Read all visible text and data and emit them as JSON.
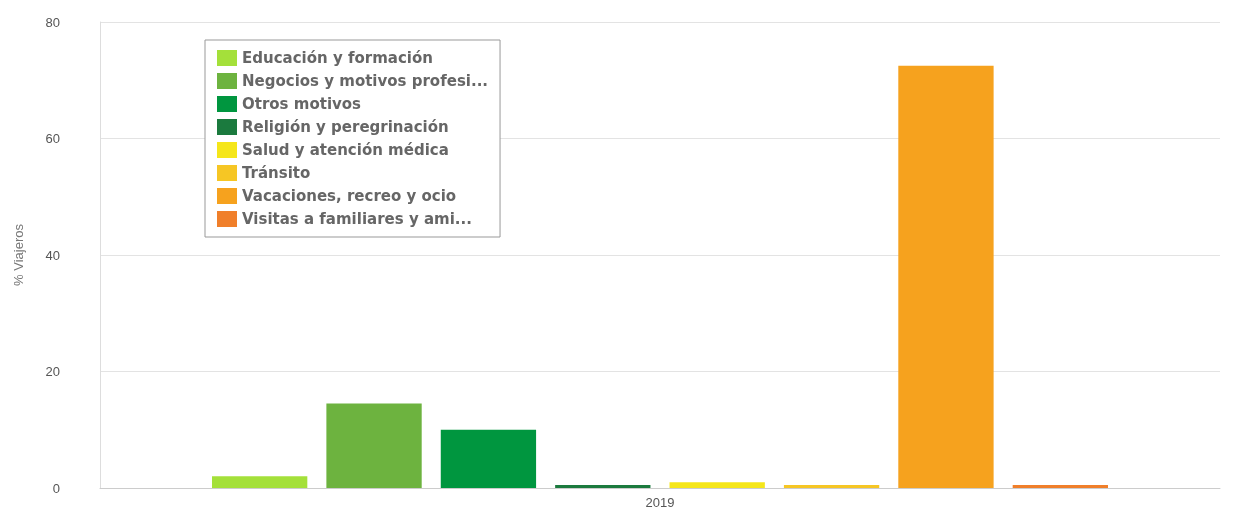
{
  "chart_data": {
    "type": "bar",
    "ylabel": "% Viajeros",
    "categories": [
      "2019"
    ],
    "series": [
      {
        "name": "Educación y formación",
        "color": "#a4e03a",
        "values": [
          2
        ]
      },
      {
        "name": "Negocios y motivos profesi...",
        "color": "#6db33f",
        "values": [
          14.5
        ]
      },
      {
        "name": "Otros motivos",
        "color": "#00963f",
        "values": [
          10
        ]
      },
      {
        "name": "Religión y peregrinación",
        "color": "#1b7a3e",
        "values": [
          0.5
        ]
      },
      {
        "name": "Salud y atención médica",
        "color": "#f5e61a",
        "values": [
          1
        ]
      },
      {
        "name": "Tránsito",
        "color": "#f6c624",
        "values": [
          0.5
        ]
      },
      {
        "name": "Vacaciones, recreo y ocio",
        "color": "#f6a21e",
        "values": [
          72.5
        ]
      },
      {
        "name": "Visitas a familiares y ami...",
        "color": "#f07f2a",
        "values": [
          0.5
        ]
      }
    ],
    "ylim": [
      0,
      80
    ],
    "yticks": [
      0,
      20,
      40,
      60,
      80
    ],
    "grid": "y",
    "legend": "top left"
  }
}
